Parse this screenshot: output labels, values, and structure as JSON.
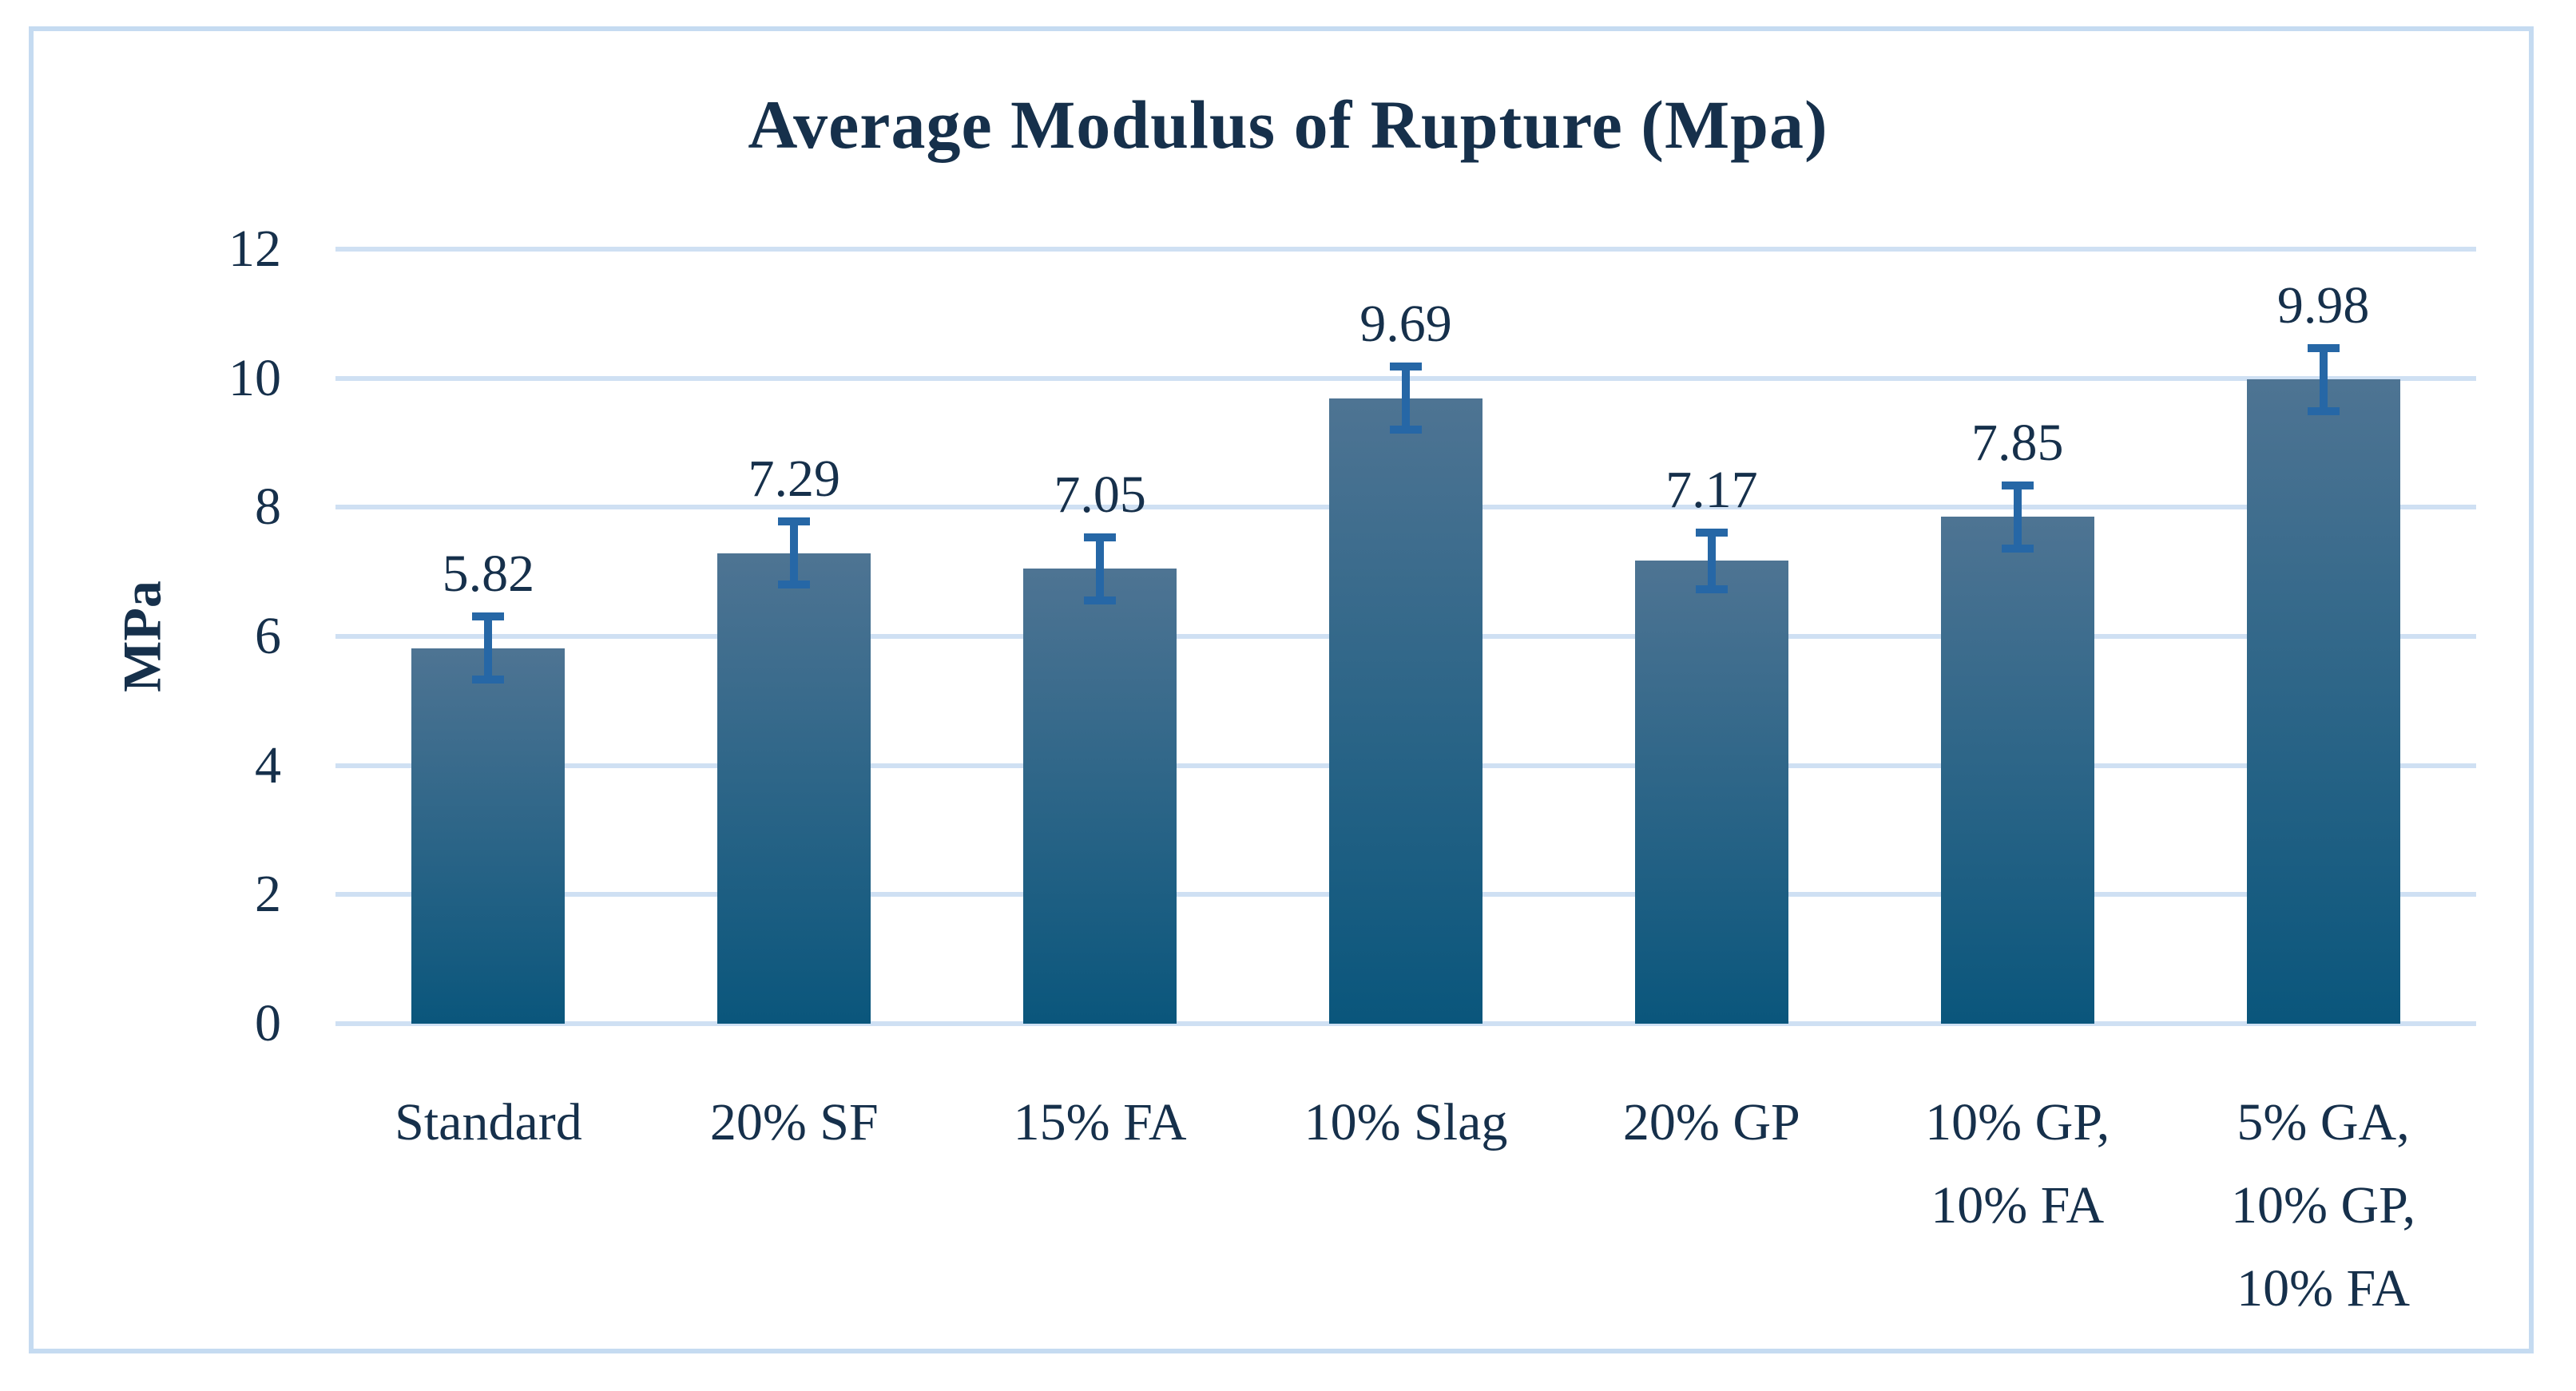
{
  "chart_data": {
    "type": "bar",
    "title": "Average Modulus of Rupture (Mpa)",
    "xlabel": "",
    "ylabel": "MPa",
    "categories": [
      "Standard",
      "20% SF",
      "15% FA",
      "10% Slag",
      "20% GP",
      "10% GP,\n10% FA",
      "5% GA,\n10% GP,\n10% FA"
    ],
    "values": [
      5.82,
      7.29,
      7.05,
      9.69,
      7.17,
      7.85,
      9.98
    ],
    "data_labels": [
      "5.82",
      "7.29",
      "7.05",
      "9.69",
      "7.17",
      "7.85",
      "9.98"
    ],
    "error_bars": [
      0.55,
      0.55,
      0.55,
      0.55,
      0.5,
      0.55,
      0.55
    ],
    "yticks": [
      0,
      2,
      4,
      6,
      8,
      10,
      12
    ],
    "ylim": [
      0,
      12
    ],
    "grid": true,
    "legend": false,
    "colors": {
      "text": "#16304b",
      "bar_gradient_top": "#4e7493",
      "bar_gradient_bottom": "#0a567c",
      "error_bar": "#2667a6",
      "gridline": "#cfe0f3",
      "frame_border": "#c5dbf1",
      "background": "#ffffff"
    }
  }
}
